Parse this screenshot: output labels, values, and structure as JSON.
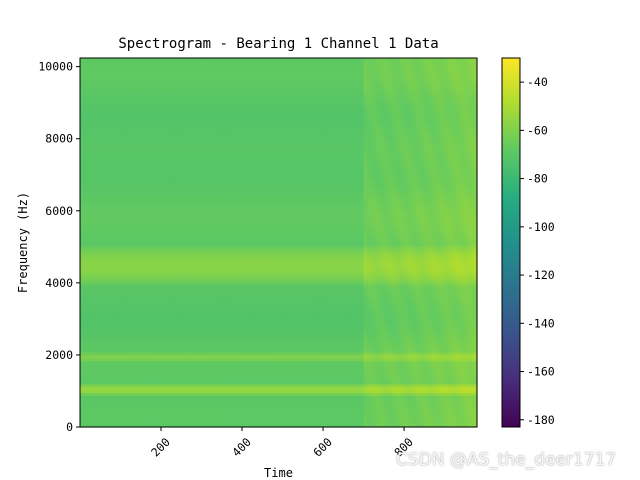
{
  "chart_data": {
    "type": "heatmap",
    "title": "Spectrogram - Bearing 1 Channel 1 Data",
    "xlabel": "Time",
    "ylabel": "Frequency (Hz)",
    "xlim": [
      0,
      980
    ],
    "ylim": [
      0,
      10240
    ],
    "x_ticks": [
      "200",
      "400",
      "600",
      "800"
    ],
    "y_ticks": [
      "0",
      "2000",
      "4000",
      "6000",
      "8000",
      "10000"
    ],
    "colormap": "viridis",
    "colorbar": {
      "range": [
        -183,
        -30
      ],
      "ticks": [
        "-40",
        "-60",
        "-80",
        "-100",
        "-120",
        "-140",
        "-160",
        "-180"
      ]
    },
    "grid": false,
    "description_values": {
      "time_range": [
        0,
        980
      ],
      "frequency_bands_hz": [
        {
          "frequency": 1050,
          "level_db": -55
        },
        {
          "frequency": 1950,
          "level_db": -60
        },
        {
          "frequency": 4500,
          "level_db": -58
        },
        {
          "frequency": 9500,
          "level_db": -70
        }
      ],
      "background_level_db": -70,
      "late_time_increase_start": 700
    }
  },
  "watermark": "CSDN @AS_the_deer1717"
}
